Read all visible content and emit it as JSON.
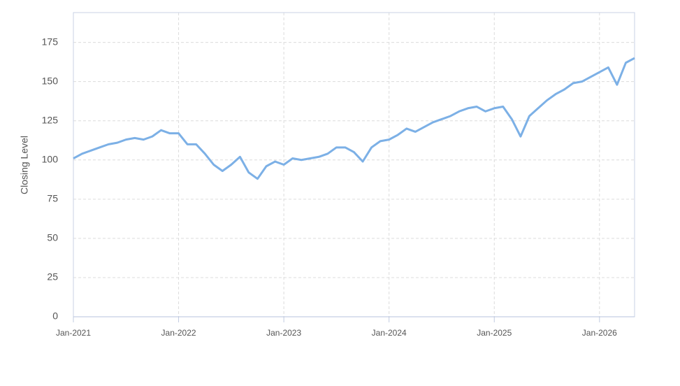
{
  "chart_data": {
    "type": "line",
    "y_label": "Closing Level",
    "x": [
      "2021-01",
      "2021-02",
      "2021-03",
      "2021-04",
      "2021-05",
      "2021-06",
      "2021-07",
      "2021-08",
      "2021-09",
      "2021-10",
      "2021-11",
      "2021-12",
      "2022-01",
      "2022-02",
      "2022-03",
      "2022-04",
      "2022-05",
      "2022-06",
      "2022-07",
      "2022-08",
      "2022-09",
      "2022-10",
      "2022-11",
      "2022-12",
      "2023-01",
      "2023-02",
      "2023-03",
      "2023-04",
      "2023-05",
      "2023-06",
      "2023-07",
      "2023-08",
      "2023-09",
      "2023-10",
      "2023-11",
      "2023-12",
      "2024-01",
      "2024-02",
      "2024-03",
      "2024-04",
      "2024-05",
      "2024-06",
      "2024-07",
      "2024-08",
      "2024-09",
      "2024-10",
      "2024-11",
      "2024-12",
      "2025-01",
      "2025-02",
      "2025-03",
      "2025-04",
      "2025-05",
      "2025-06",
      "2025-07",
      "2025-08",
      "2025-09",
      "2025-10",
      "2025-11",
      "2025-12",
      "2026-01",
      "2026-02",
      "2026-03",
      "2026-04",
      "2026-05"
    ],
    "series": [
      {
        "color": "#7cb0e6",
        "values": [
          101,
          104,
          106,
          108,
          110,
          111,
          113,
          114,
          113,
          115,
          119,
          117,
          117,
          110,
          110,
          104,
          97,
          93,
          97,
          102,
          92,
          88,
          96,
          99,
          97,
          101,
          100,
          101,
          102,
          104,
          108,
          108,
          105,
          99,
          108,
          112,
          113,
          116,
          120,
          118,
          121,
          124,
          126,
          128,
          131,
          133,
          134,
          131,
          133,
          134,
          126,
          115,
          128,
          133,
          138,
          142,
          145,
          149,
          150,
          153,
          156,
          159,
          148,
          162,
          165
        ]
      }
    ],
    "xlim": [
      "2021-01",
      "2026-05"
    ],
    "xticks": [
      {
        "value": "2021-01",
        "label": "Jan-2021"
      },
      {
        "value": "2022-01",
        "label": "Jan-2022"
      },
      {
        "value": "2023-01",
        "label": "Jan-2023"
      },
      {
        "value": "2024-01",
        "label": "Jan-2024"
      },
      {
        "value": "2025-01",
        "label": "Jan-2025"
      },
      {
        "value": "2026-01",
        "label": "Jan-2026"
      }
    ],
    "ylim": [
      0,
      194
    ],
    "yticks": [
      0,
      25,
      50,
      75,
      100,
      125,
      150,
      175
    ],
    "grid": true
  }
}
